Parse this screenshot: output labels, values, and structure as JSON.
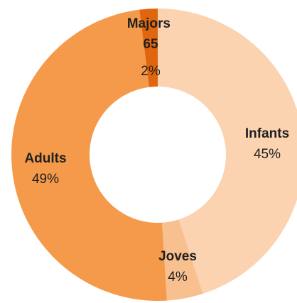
{
  "chart_data": {
    "type": "pie",
    "donut": true,
    "title": "",
    "legend": "none",
    "slices": [
      {
        "name": "Infants",
        "value": 45,
        "label": "45%",
        "color": "#fbd3b0"
      },
      {
        "name": "Joves",
        "value": 4,
        "label": "4%",
        "color": "#f8c08f"
      },
      {
        "name": "Adults",
        "value": 49,
        "label": "49%",
        "color": "#f49a4a"
      },
      {
        "name": "Majors 65",
        "name_lines": [
          "Majors",
          "65"
        ],
        "value": 2,
        "label": "2%",
        "color": "#e0650f"
      }
    ]
  }
}
